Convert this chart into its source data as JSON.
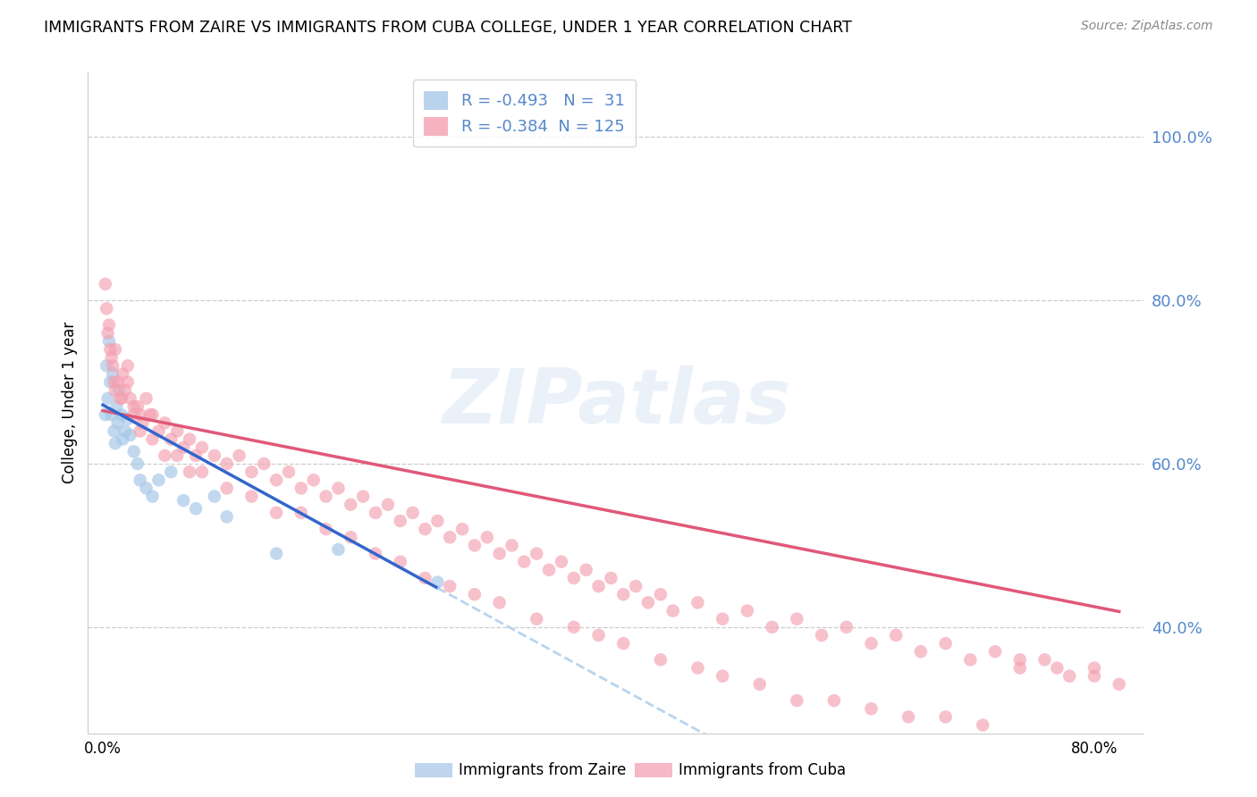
{
  "title": "IMMIGRANTS FROM ZAIRE VS IMMIGRANTS FROM CUBA COLLEGE, UNDER 1 YEAR CORRELATION CHART",
  "source": "Source: ZipAtlas.com",
  "ylabel": "College, Under 1 year",
  "xlim": [
    -0.012,
    0.84
  ],
  "ylim": [
    0.27,
    1.08
  ],
  "x_ticks": [
    0.0,
    0.8
  ],
  "x_tick_labels": [
    "0.0%",
    "80.0%"
  ],
  "y_ticks_right": [
    1.0,
    0.8,
    0.6,
    0.4
  ],
  "y_tick_labels_right": [
    "100.0%",
    "80.0%",
    "60.0%",
    "40.0%"
  ],
  "zaire_color": "#a8c8e8",
  "cuba_color": "#f4a0b0",
  "trend_zaire_color": "#3366cc",
  "trend_cuba_color": "#e05878",
  "trend_zaire_dashed_color": "#b8d4ee",
  "right_axis_color": "#5588cc",
  "grid_color": "#cccccc",
  "background_color": "#ffffff",
  "zaire_R": -0.493,
  "zaire_N": 31,
  "cuba_R": -0.384,
  "cuba_N": 125,
  "legend_label_zaire": "Immigrants from Zaire",
  "legend_label_cuba": "Immigrants from Cuba",
  "watermark": "ZIPatlas",
  "title_fontsize": 12.5,
  "source_fontsize": 10,
  "axis_label_fontsize": 12,
  "tick_fontsize": 12,
  "legend_fontsize": 13
}
